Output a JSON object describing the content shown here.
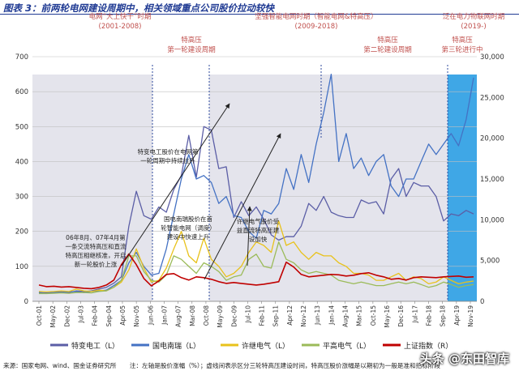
{
  "header": {
    "title": "图表 3：前两轮电网建设周期中，相关领域重点公司股价拉动较快"
  },
  "footer": {
    "source": "来源：国家电网、wind、国金证券研究所",
    "note": "注：左轴是股价涨幅（%）；虚线间表示区分三轮特高压建设时间，特高压股价涨幅是以期初为一般是准和招标阶段"
  },
  "watermark": "头条 @东田智库",
  "chart_data": {
    "type": "line",
    "x_ticks": [
      "Oct-01",
      "May-02",
      "Dec-02",
      "Jul-03",
      "Feb-04",
      "Sep-04",
      "Apr-05",
      "Nov-05",
      "Jun-06",
      "Jan-07",
      "Aug-07",
      "Mar-08",
      "Oct-08",
      "May-09",
      "Dec-09",
      "Jul-10",
      "Feb-11",
      "Sep-11",
      "Apr-12",
      "Nov-12",
      "Jun-13",
      "Jan-14",
      "Aug-14",
      "Mar-15",
      "Oct-15",
      "May-16",
      "Dec-16",
      "Jul-17",
      "Feb-18",
      "Sep-18",
      "Apr-19",
      "Nov-19"
    ],
    "y_left": {
      "min": 0,
      "max": 700,
      "ticks": [
        0,
        100,
        200,
        300,
        400,
        500,
        600,
        700
      ]
    },
    "y_right": {
      "min": 0,
      "max": 30000,
      "ticks": [
        "0",
        "5,000",
        "10,000",
        "15,000",
        "20,000",
        "25,000",
        "30,000"
      ]
    },
    "series": [
      {
        "name": "特变电工（L）",
        "axis": "left",
        "color": "#5b5ea6",
        "values": [
          25,
          24,
          26,
          27,
          25,
          30,
          28,
          30,
          35,
          40,
          52,
          70,
          215,
          315,
          245,
          235,
          270,
          255,
          320,
          360,
          475,
          355,
          500,
          490,
          380,
          385,
          240,
          285,
          245,
          270,
          235,
          190,
          175,
          185,
          185,
          215,
          280,
          260,
          300,
          255,
          245,
          240,
          240,
          290,
          280,
          285,
          250,
          350,
          380,
          300,
          340,
          330,
          330,
          300,
          230,
          250,
          245,
          260,
          250
        ]
      },
      {
        "name": "国电南瑞（L）",
        "axis": "left",
        "color": "#4472c4",
        "values": [
          25,
          23,
          26,
          25,
          27,
          28,
          25,
          28,
          30,
          32,
          45,
          60,
          110,
          140,
          100,
          75,
          80,
          150,
          250,
          350,
          420,
          350,
          360,
          340,
          280,
          300,
          245,
          240,
          200,
          180,
          260,
          250,
          280,
          380,
          320,
          420,
          340,
          450,
          540,
          650,
          400,
          480,
          380,
          410,
          360,
          400,
          420,
          330,
          300,
          350,
          350,
          400,
          450,
          420,
          450,
          480,
          445,
          520,
          640
        ]
      },
      {
        "name": "许继电气（L）",
        "axis": "left",
        "color": "#e8c21b",
        "values": [
          28,
          27,
          28,
          30,
          28,
          35,
          30,
          28,
          32,
          30,
          40,
          55,
          90,
          150,
          95,
          55,
          60,
          95,
          150,
          200,
          130,
          110,
          180,
          120,
          100,
          70,
          80,
          100,
          140,
          170,
          160,
          140,
          230,
          160,
          170,
          140,
          120,
          140,
          130,
          130,
          110,
          100,
          80,
          80,
          75,
          60,
          60,
          70,
          80,
          60,
          70,
          65,
          50,
          55,
          70,
          60,
          50,
          55,
          58
        ]
      },
      {
        "name": "平高电气（L）",
        "axis": "left",
        "color": "#9bbb59",
        "values": [
          22,
          22,
          23,
          24,
          23,
          25,
          25,
          24,
          28,
          30,
          40,
          60,
          130,
          130,
          85,
          60,
          55,
          75,
          130,
          120,
          100,
          80,
          110,
          100,
          85,
          60,
          70,
          75,
          120,
          135,
          100,
          95,
          170,
          120,
          110,
          90,
          80,
          85,
          80,
          75,
          60,
          55,
          50,
          55,
          50,
          45,
          45,
          50,
          55,
          50,
          55,
          48,
          40,
          45,
          55,
          48,
          40,
          45,
          48
        ]
      },
      {
        "name": "上证指数（R）",
        "axis": "right",
        "color": "#c00000",
        "values": [
          2000,
          1800,
          1850,
          1750,
          1800,
          1700,
          1600,
          1550,
          1700,
          2000,
          2600,
          4500,
          5800,
          4500,
          2800,
          1900,
          2500,
          3300,
          3400,
          2900,
          2600,
          3000,
          2900,
          2700,
          2400,
          2200,
          2300,
          2200,
          2100,
          2000,
          2100,
          2250,
          2400,
          4800,
          4200,
          3300,
          3000,
          3100,
          3200,
          3300,
          3250,
          3100,
          3200,
          3400,
          3500,
          3200,
          3000,
          2700,
          2800,
          2600,
          2900,
          3000,
          2950,
          2900,
          3000,
          3050,
          3100,
          2950,
          3000
        ]
      }
    ],
    "periods": [
      {
        "title": "电网“大上快干”时期",
        "years": "(2001-2008)",
        "color": "#c0504d"
      },
      {
        "title": "坚强智能电网时期（智能电网&特高压）",
        "years": "(2009-2018)",
        "color": "#c0504d"
      },
      {
        "title": "泛在电力物联网时期",
        "years": "(2019-)",
        "color": "#c0504d"
      }
    ],
    "cycles": [
      {
        "line1": "特高压",
        "line2": "第一轮建设周期"
      },
      {
        "line1": "特高压",
        "line2": "第二轮建设周期"
      },
      {
        "line1": "特高压",
        "line2": "第三轮进行中"
      }
    ],
    "annotations": [
      {
        "lines": [
          "特变电工股价在电网第",
          "一轮周期中持续拉升"
        ]
      },
      {
        "lines": [
          "国电南瑞股价在首",
          "轮智能电网（调度）",
          "建设中快速上升"
        ]
      },
      {
        "lines": [
          "许继电气股价受",
          "益直流特高压建",
          "设加快"
        ]
      },
      {
        "lines": [
          "06年8月、07年4月第",
          "一条交流特高压和直流",
          "特高压相继核准，开启",
          "新一轮股价上涨"
        ]
      }
    ]
  }
}
